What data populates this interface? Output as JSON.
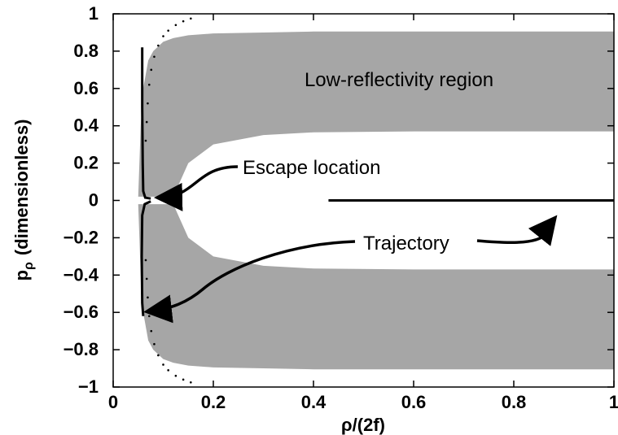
{
  "chart_data": {
    "type": "area",
    "title": "",
    "xlabel": "ρ/(2f)",
    "ylabel": "p",
    "ylabel_sub": "ρ",
    "ylabel_suffix": "(dimensionless)",
    "xlim": [
      0,
      1
    ],
    "ylim": [
      -1,
      1
    ],
    "grid": false,
    "x_ticks": [
      0,
      0.2,
      0.4,
      0.6,
      0.8,
      1
    ],
    "x_tick_labels": [
      "0",
      "0.2",
      "0.4",
      "0.6",
      "0.8",
      "1"
    ],
    "y_ticks": [
      1,
      0.8,
      0.6,
      0.4,
      0.2,
      0,
      -0.2,
      -0.4,
      -0.6,
      -0.8,
      -1
    ],
    "y_tick_labels": [
      "1",
      "0.8",
      "0.6",
      "0.4",
      "0.2",
      "0",
      "−0.2",
      "−0.4",
      "−0.6",
      "−0.8",
      "−1"
    ],
    "region_color": "#a6a6a6",
    "region": {
      "x": [
        0.05,
        0.055,
        0.06,
        0.07,
        0.08,
        0.1,
        0.12,
        0.15,
        0.2,
        0.3,
        0.4,
        0.6,
        0.8,
        1.0
      ],
      "outer": [
        0.02,
        0.4,
        0.6,
        0.75,
        0.8,
        0.85,
        0.87,
        0.885,
        0.895,
        0.9,
        0.905,
        0.905,
        0.905,
        0.905
      ],
      "inner": [
        0.02,
        0.02,
        0.02,
        0.02,
        0.02,
        0.02,
        0.02,
        0.2,
        0.3,
        0.35,
        0.365,
        0.37,
        0.37,
        0.37
      ]
    },
    "boundary_dots": {
      "x": [
        0.155,
        0.14,
        0.125,
        0.11,
        0.1,
        0.09,
        0.082,
        0.076,
        0.072,
        0.069,
        0.067,
        0.065
      ],
      "y": [
        0.975,
        0.96,
        0.94,
        0.91,
        0.88,
        0.83,
        0.77,
        0.7,
        0.62,
        0.52,
        0.42,
        0.32
      ]
    },
    "trajectory": {
      "upper_x": [
        0.058,
        0.058,
        0.059,
        0.06,
        0.064,
        0.075
      ],
      "upper_y": [
        0.82,
        0.5,
        0.2,
        0.05,
        0.015,
        0.01
      ],
      "lower_x": [
        0.075,
        0.063,
        0.058,
        0.057,
        0.058,
        0.06
      ],
      "lower_y": [
        -0.005,
        -0.02,
        -0.08,
        -0.3,
        -0.55,
        -0.62
      ],
      "line_x": [
        0.43,
        1.0
      ],
      "line_y": [
        0.0,
        0.0
      ]
    },
    "annotations": [
      {
        "text": "Low-reflectivity region"
      },
      {
        "text": "Escape location"
      },
      {
        "text": "Trajectory"
      }
    ]
  }
}
